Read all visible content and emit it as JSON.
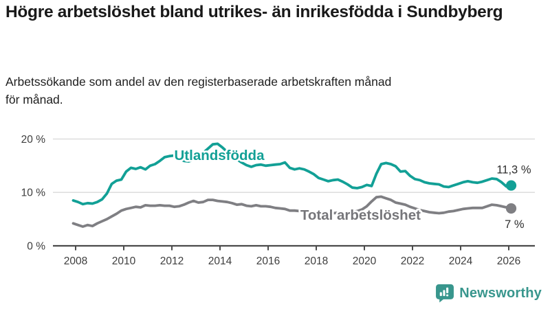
{
  "header": {
    "title": "Högre arbetslöshet bland utrikes- än inrikesfödda i Sundbyberg",
    "subtitle": "Arbetssökande som andel av den registerbaserade arbetskraften månad för månad."
  },
  "footer": {
    "brand": "Newsworthy",
    "logo_icon": "newsworthy-speech-bubble-bar-chart-icon"
  },
  "colors": {
    "foreign_born_line": "#12a096",
    "total_line": "#7f7f83",
    "total_label": "#76767a",
    "axis_text": "#3d3d3d",
    "grid": "#dadada",
    "axis": "#4a4a4a",
    "value_label": "#2d2d2d",
    "brand_teal": "#38968d",
    "halo": "#ffffff"
  },
  "chart_data": {
    "type": "line",
    "x_unit": "year (decimal ~ monthly series)",
    "grid": "horizontal",
    "legend": "inline-labels",
    "xlim": [
      2007.0,
      2027.2
    ],
    "ylim": [
      0,
      22
    ],
    "xticks": [
      2008,
      2010,
      2012,
      2014,
      2016,
      2018,
      2020,
      2022,
      2024,
      2026
    ],
    "yticks": [
      {
        "value": 0,
        "label": "0 %"
      },
      {
        "value": 10,
        "label": "10 %"
      },
      {
        "value": 20,
        "label": "20 %"
      }
    ],
    "x": [
      2007.9,
      2008.1,
      2008.3,
      2008.5,
      2008.7,
      2008.9,
      2009.1,
      2009.3,
      2009.5,
      2009.7,
      2009.9,
      2010.1,
      2010.3,
      2010.5,
      2010.7,
      2010.9,
      2011.1,
      2011.3,
      2011.5,
      2011.7,
      2011.9,
      2012.1,
      2012.3,
      2012.5,
      2012.7,
      2012.9,
      2013.1,
      2013.3,
      2013.5,
      2013.7,
      2013.9,
      2014.1,
      2014.3,
      2014.5,
      2014.7,
      2014.9,
      2015.1,
      2015.3,
      2015.5,
      2015.7,
      2015.9,
      2016.1,
      2016.3,
      2016.5,
      2016.7,
      2016.9,
      2017.1,
      2017.3,
      2017.5,
      2017.7,
      2017.9,
      2018.1,
      2018.3,
      2018.5,
      2018.7,
      2018.9,
      2019.1,
      2019.3,
      2019.5,
      2019.7,
      2019.9,
      2020.1,
      2020.3,
      2020.5,
      2020.7,
      2020.9,
      2021.1,
      2021.3,
      2021.5,
      2021.7,
      2021.9,
      2022.1,
      2022.3,
      2022.5,
      2022.7,
      2022.9,
      2023.1,
      2023.3,
      2023.5,
      2023.7,
      2023.9,
      2024.1,
      2024.3,
      2024.5,
      2024.7,
      2024.9,
      2025.1,
      2025.3,
      2025.5,
      2025.7,
      2025.9,
      2026.1
    ],
    "series": [
      {
        "name": "Utlandsfödda",
        "color_key": "foreign_born_line",
        "end_label": "11,3 %",
        "label_pos": [
          2012.1,
          16.05
        ],
        "values": [
          8.5,
          8.2,
          7.8,
          8.0,
          7.9,
          8.2,
          8.7,
          9.8,
          11.6,
          12.2,
          12.4,
          13.9,
          14.6,
          14.4,
          14.7,
          14.3,
          15.0,
          15.3,
          15.9,
          16.6,
          16.8,
          16.9,
          16.3,
          15.9,
          15.8,
          16.1,
          16.7,
          17.4,
          18.2,
          19.0,
          19.1,
          18.4,
          17.6,
          16.9,
          16.2,
          15.6,
          15.1,
          14.8,
          15.1,
          15.2,
          15.0,
          15.1,
          15.2,
          15.3,
          15.6,
          14.6,
          14.3,
          14.5,
          14.3,
          13.9,
          13.4,
          12.7,
          12.4,
          12.1,
          12.3,
          12.4,
          12.0,
          11.5,
          10.9,
          10.8,
          11.0,
          11.4,
          11.2,
          13.5,
          15.3,
          15.5,
          15.3,
          14.9,
          13.9,
          14.0,
          13.1,
          12.5,
          12.3,
          11.9,
          11.7,
          11.6,
          11.5,
          11.1,
          11.0,
          11.3,
          11.6,
          11.9,
          12.1,
          11.9,
          11.8,
          12.0,
          12.3,
          12.6,
          12.5,
          11.9,
          11.1,
          11.3
        ]
      },
      {
        "name": "Total arbetslöshet",
        "color_key": "total_line",
        "label_color_key": "total_label",
        "end_label": "7 %",
        "label_pos": [
          2017.34,
          4.88
        ],
        "values": [
          4.2,
          3.9,
          3.6,
          3.9,
          3.7,
          4.2,
          4.6,
          5.0,
          5.5,
          6.0,
          6.6,
          6.9,
          7.1,
          7.3,
          7.2,
          7.6,
          7.5,
          7.5,
          7.6,
          7.5,
          7.5,
          7.3,
          7.4,
          7.7,
          8.1,
          8.4,
          8.1,
          8.2,
          8.6,
          8.6,
          8.4,
          8.3,
          8.2,
          8.0,
          7.7,
          7.8,
          7.5,
          7.4,
          7.6,
          7.4,
          7.4,
          7.3,
          7.1,
          7.0,
          6.9,
          6.6,
          6.6,
          6.5,
          6.4,
          6.3,
          6.2,
          6.2,
          6.1,
          6.1,
          6.1,
          6.2,
          6.2,
          6.3,
          6.3,
          6.5,
          6.8,
          7.4,
          8.3,
          9.1,
          9.2,
          8.9,
          8.6,
          8.1,
          7.9,
          7.7,
          7.3,
          7.0,
          6.7,
          6.5,
          6.3,
          6.2,
          6.1,
          6.2,
          6.4,
          6.5,
          6.7,
          6.9,
          7.0,
          7.1,
          7.1,
          7.1,
          7.4,
          7.7,
          7.6,
          7.4,
          7.2,
          7.0
        ]
      }
    ]
  }
}
